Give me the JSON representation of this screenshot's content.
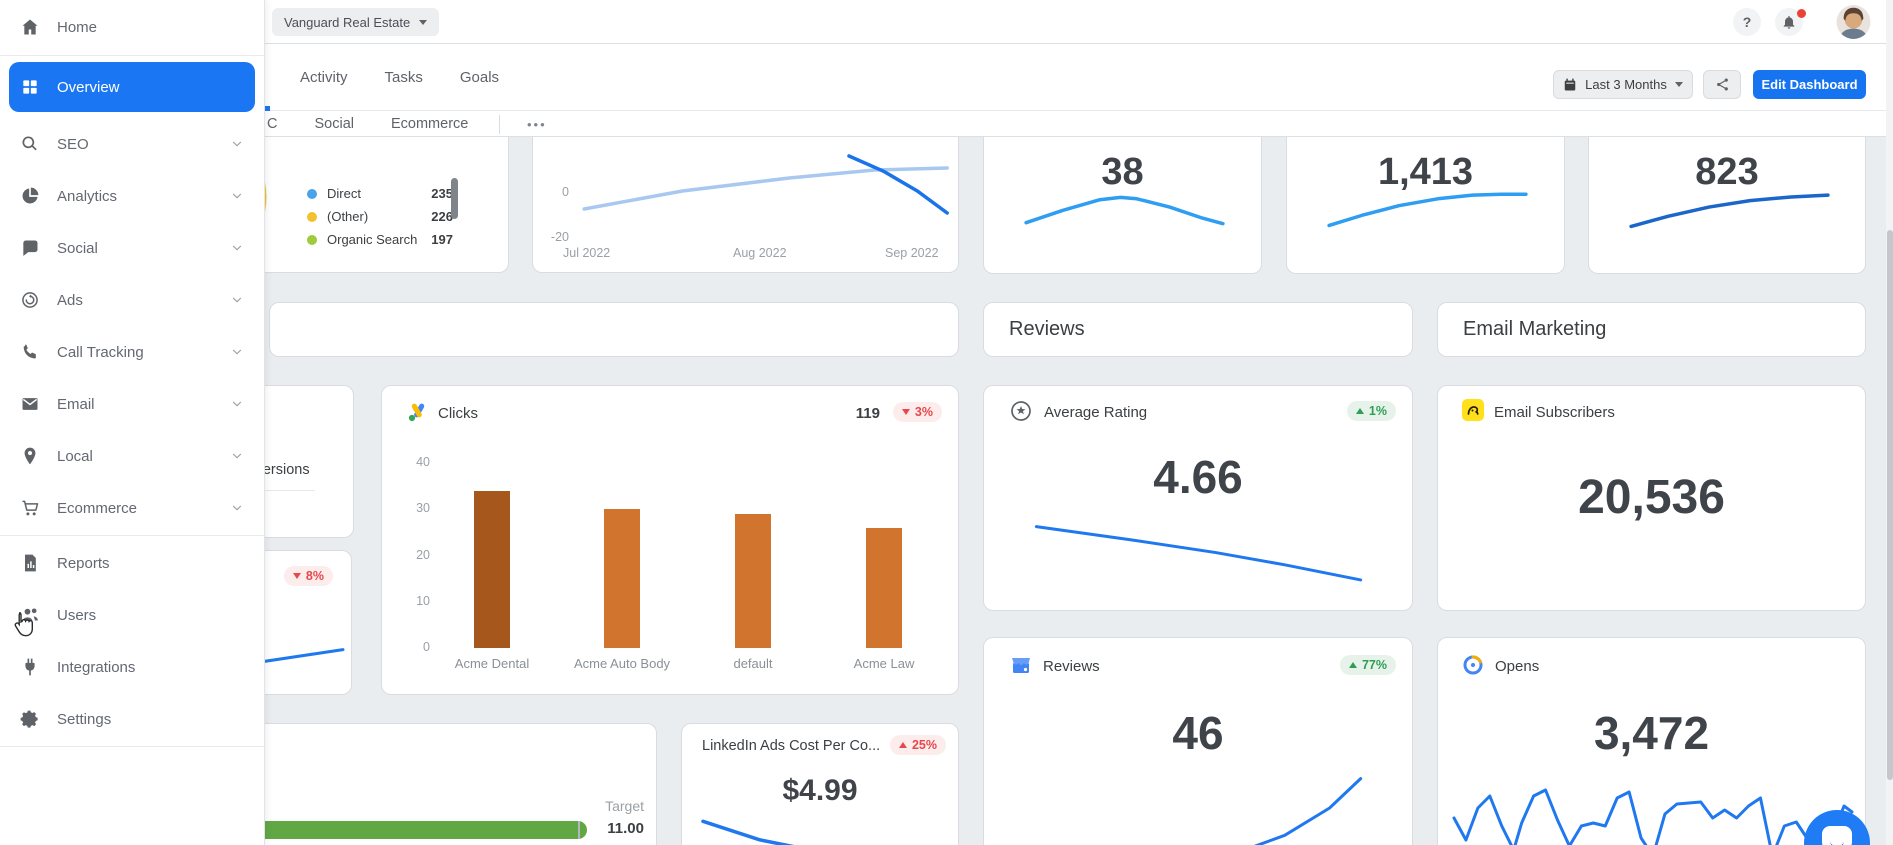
{
  "colors": {
    "accent_blue": "#1b76f3",
    "background": "#eaedf0",
    "red": "#e5484d",
    "red_bg": "#fdecec",
    "green": "#2f9e55",
    "green_bg": "#e7f3ea",
    "line_blue": "#1f78f0",
    "line_blue_bright": "#2e9df2",
    "line_blue_dark": "#1b66c9",
    "line_blue_light": "#a9c8f0",
    "bar_orange": "#d1742d",
    "bar_orange_dark": "#a6571c",
    "progress_green": "#61a744",
    "legend_blue": "#4aa3e8",
    "legend_yellow": "#f2c12e",
    "legend_green": "#9ccc3c"
  },
  "topbar": {
    "account_selector": "Vanguard Real Estate",
    "help_label": "?"
  },
  "sidebar": {
    "items": [
      {
        "label": "Home",
        "icon": "home",
        "divider_after": true
      },
      {
        "label": "Overview",
        "icon": "overview-grid",
        "active": true
      },
      {
        "label": "SEO",
        "icon": "seo-search",
        "chevron": true
      },
      {
        "label": "Analytics",
        "icon": "analytics-pie",
        "chevron": true
      },
      {
        "label": "Social",
        "icon": "social-chat",
        "chevron": true
      },
      {
        "label": "Ads",
        "icon": "ads-circle",
        "chevron": true
      },
      {
        "label": "Call Tracking",
        "icon": "call-phone",
        "chevron": true
      },
      {
        "label": "Email",
        "icon": "email-envelope",
        "chevron": true
      },
      {
        "label": "Local",
        "icon": "local-pin",
        "chevron": true
      },
      {
        "label": "Ecommerce",
        "icon": "ecommerce-cart",
        "chevron": true,
        "divider_after": true
      },
      {
        "label": "Reports",
        "icon": "reports-doc"
      },
      {
        "label": "Users",
        "icon": "users-people",
        "cursor": true
      },
      {
        "label": "Integrations",
        "icon": "integrations-plug"
      },
      {
        "label": "Settings",
        "icon": "settings-gear",
        "divider_after": true
      }
    ]
  },
  "header": {
    "tabs": [
      "Activity",
      "Tasks",
      "Goals"
    ],
    "subtabs": [
      "C",
      "Social",
      "Ecommerce"
    ],
    "more_label": "•••",
    "date_range_label": "Last 3 Months",
    "edit_button_label": "Edit Dashboard"
  },
  "cards": {
    "traffic": {
      "legend": [
        {
          "label": "Direct",
          "value": "235",
          "color": "#4aa3e8"
        },
        {
          "label": "(Other)",
          "value": "226",
          "color": "#f2c12e"
        },
        {
          "label": "Organic Search",
          "value": "197",
          "color": "#9ccc3c"
        }
      ]
    },
    "trend": {
      "ytick_zero": "0",
      "ytick_neg": "-20",
      "xticks": [
        "Jul 2022",
        "Aug 2022",
        "Sep 2022"
      ],
      "light_line": [
        [
          12,
          58
        ],
        [
          35,
          40
        ],
        [
          60,
          27
        ],
        [
          80,
          19
        ],
        [
          97,
          17
        ]
      ],
      "dark_line": [
        [
          74,
          5
        ],
        [
          82,
          20
        ],
        [
          90,
          40
        ],
        [
          97,
          62
        ]
      ]
    },
    "metrics": [
      {
        "value": "38",
        "color": "#2e9df2",
        "spark": [
          [
            2,
            82
          ],
          [
            20,
            55
          ],
          [
            38,
            32
          ],
          [
            48,
            27
          ],
          [
            56,
            30
          ],
          [
            72,
            48
          ],
          [
            88,
            72
          ],
          [
            98,
            84
          ]
        ]
      },
      {
        "value": "1,413",
        "color": "#2e9df2",
        "spark": [
          [
            2,
            88
          ],
          [
            18,
            66
          ],
          [
            36,
            45
          ],
          [
            55,
            30
          ],
          [
            72,
            22
          ],
          [
            86,
            20
          ],
          [
            98,
            20
          ]
        ]
      },
      {
        "value": "823",
        "color": "#1b66c9",
        "spark": [
          [
            2,
            90
          ],
          [
            20,
            68
          ],
          [
            40,
            48
          ],
          [
            60,
            34
          ],
          [
            80,
            26
          ],
          [
            98,
            22
          ]
        ]
      }
    ],
    "sections": {
      "reviews": "Reviews",
      "email": "Email Marketing"
    },
    "clicks": {
      "title": "Clicks",
      "value": "119",
      "change": "3%",
      "direction": "down"
    },
    "average_rating": {
      "title": "Average Rating",
      "value": "4.66",
      "change": "1%",
      "direction": "up",
      "spark": [
        [
          3,
          12
        ],
        [
          30,
          30
        ],
        [
          55,
          48
        ],
        [
          75,
          65
        ],
        [
          97,
          86
        ]
      ]
    },
    "email_subscribers": {
      "title": "Email Subscribers",
      "value": "20,536"
    },
    "conversions_partial": {
      "label": "Conversions"
    },
    "partial_metric": {
      "change": "8%",
      "direction": "down",
      "spark": [
        [
          0,
          78
        ],
        [
          100,
          22
        ]
      ]
    },
    "reviews_count": {
      "title": "Reviews",
      "value": "46",
      "change": "77%",
      "direction": "up",
      "spark": [
        [
          0,
          94
        ],
        [
          30,
          94
        ],
        [
          45,
          92
        ],
        [
          60,
          84
        ],
        [
          75,
          66
        ],
        [
          88,
          40
        ],
        [
          97,
          12
        ]
      ]
    },
    "opens": {
      "title": "Opens",
      "value": "3,472",
      "spark": [
        [
          0,
          50
        ],
        [
          3,
          72
        ],
        [
          6,
          40
        ],
        [
          9,
          28
        ],
        [
          12,
          58
        ],
        [
          15,
          82
        ],
        [
          17,
          55
        ],
        [
          20,
          28
        ],
        [
          23,
          22
        ],
        [
          26,
          52
        ],
        [
          29,
          78
        ],
        [
          32,
          58
        ],
        [
          35,
          55
        ],
        [
          38,
          58
        ],
        [
          41,
          30
        ],
        [
          44,
          24
        ],
        [
          47,
          70
        ],
        [
          50,
          88
        ],
        [
          53,
          46
        ],
        [
          56,
          36
        ],
        [
          59,
          35
        ],
        [
          62,
          34
        ],
        [
          65,
          50
        ],
        [
          68,
          42
        ],
        [
          71,
          50
        ],
        [
          74,
          38
        ],
        [
          77,
          30
        ],
        [
          80,
          88
        ],
        [
          83,
          58
        ],
        [
          86,
          54
        ],
        [
          89,
          72
        ],
        [
          92,
          90
        ],
        [
          95,
          68
        ],
        [
          98,
          38
        ],
        [
          100,
          44
        ]
      ]
    },
    "target": {
      "label": "Target",
      "value": "11.00"
    },
    "linkedin": {
      "title": "LinkedIn Ads Cost Per Co...",
      "value": "$4.99",
      "change": "25%",
      "direction": "up",
      "spark": [
        [
          2,
          15
        ],
        [
          25,
          45
        ],
        [
          50,
          65
        ],
        [
          75,
          80
        ],
        [
          98,
          92
        ]
      ]
    }
  },
  "chart_data": [
    {
      "id": "traffic-channels",
      "type": "pie",
      "title": "Traffic channels (donut, partially hidden behind sidebar)",
      "categories": [
        "Direct",
        "(Other)",
        "Organic Search"
      ],
      "values": [
        235,
        226,
        197
      ],
      "colors": [
        "#4aa3e8",
        "#f2c12e",
        "#9ccc3c"
      ],
      "legend_position": "right"
    },
    {
      "id": "trend-jul-sep",
      "type": "line",
      "x": [
        "Jul 2022",
        "Aug 2022",
        "Sep 2022"
      ],
      "yticks": [
        0,
        -20
      ],
      "series": [
        {
          "name": "current (light blue)",
          "estimated": [
            -8,
            2,
            10
          ]
        },
        {
          "name": "comparison (dark blue)",
          "estimated": [
            18,
            8,
            -5
          ]
        }
      ],
      "grid": false,
      "legend_position": "none"
    },
    {
      "id": "metric-38",
      "type": "line",
      "title": "sparkline",
      "value": 38
    },
    {
      "id": "metric-1413",
      "type": "line",
      "title": "sparkline",
      "value": 1413
    },
    {
      "id": "metric-823",
      "type": "line",
      "title": "sparkline",
      "value": 823
    },
    {
      "id": "clicks-by-campaign",
      "type": "bar",
      "title": "Clicks",
      "categories": [
        "Acme Dental",
        "Acme Auto Body",
        "default",
        "Acme Law"
      ],
      "values": [
        34,
        30,
        29,
        26
      ],
      "colors": [
        "#a6571c",
        "#d1742d",
        "#d1742d",
        "#d1742d"
      ],
      "ylim": [
        0,
        40
      ],
      "yticks": [
        0,
        10,
        20,
        30,
        40
      ],
      "total": 119,
      "change_pct": "-3%",
      "grid": false
    },
    {
      "id": "average-rating-trend",
      "type": "line",
      "value": 4.66,
      "change_pct": "+1%",
      "shape": "declining"
    },
    {
      "id": "reviews-trend",
      "type": "line",
      "value": 46,
      "change_pct": "+77%",
      "shape": "flat then rising"
    },
    {
      "id": "opens-trend",
      "type": "line",
      "value": 3472,
      "shape": "high-frequency oscillation"
    },
    {
      "id": "linkedin-cost-per-conversion",
      "type": "line",
      "value": "$4.99",
      "change_pct": "+25%",
      "shape": "declining"
    },
    {
      "id": "goal-progress",
      "type": "progress",
      "target": "11.00",
      "progress_pct": 97
    }
  ]
}
